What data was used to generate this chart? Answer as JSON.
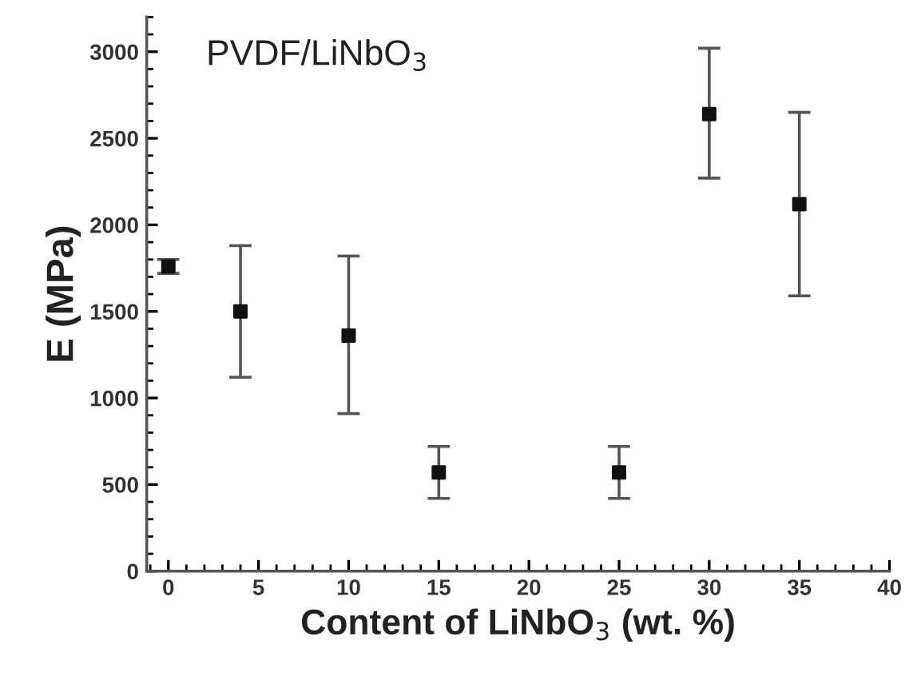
{
  "chart_data": {
    "type": "scatter",
    "title": "PVDF/LiNbO$_{3}$",
    "xlabel": "Content of LiNbO$_{3}$ (wt. %)",
    "ylabel": "E (MPa)",
    "x": [
      0,
      4,
      10,
      15,
      25,
      30,
      35
    ],
    "series": [
      {
        "color": "#111111",
        "values": [
          1760,
          1500,
          1360,
          570,
          570,
          2640,
          2120
        ],
        "errors": [
          [
            1720,
            1800
          ],
          [
            1120,
            1880
          ],
          [
            910,
            1820
          ],
          [
            420,
            720
          ],
          [
            420,
            720
          ],
          [
            2270,
            3020
          ],
          [
            1590,
            2650
          ]
        ]
      }
    ],
    "marker": "square",
    "xlim": [
      -1.2,
      40
    ],
    "ylim": [
      0,
      3200
    ],
    "xticks": [
      0,
      5,
      10,
      15,
      20,
      25,
      30,
      35,
      40
    ],
    "yticks": [
      0,
      500,
      1000,
      1500,
      2000,
      2500,
      3000
    ],
    "grid": false,
    "legend": false
  }
}
